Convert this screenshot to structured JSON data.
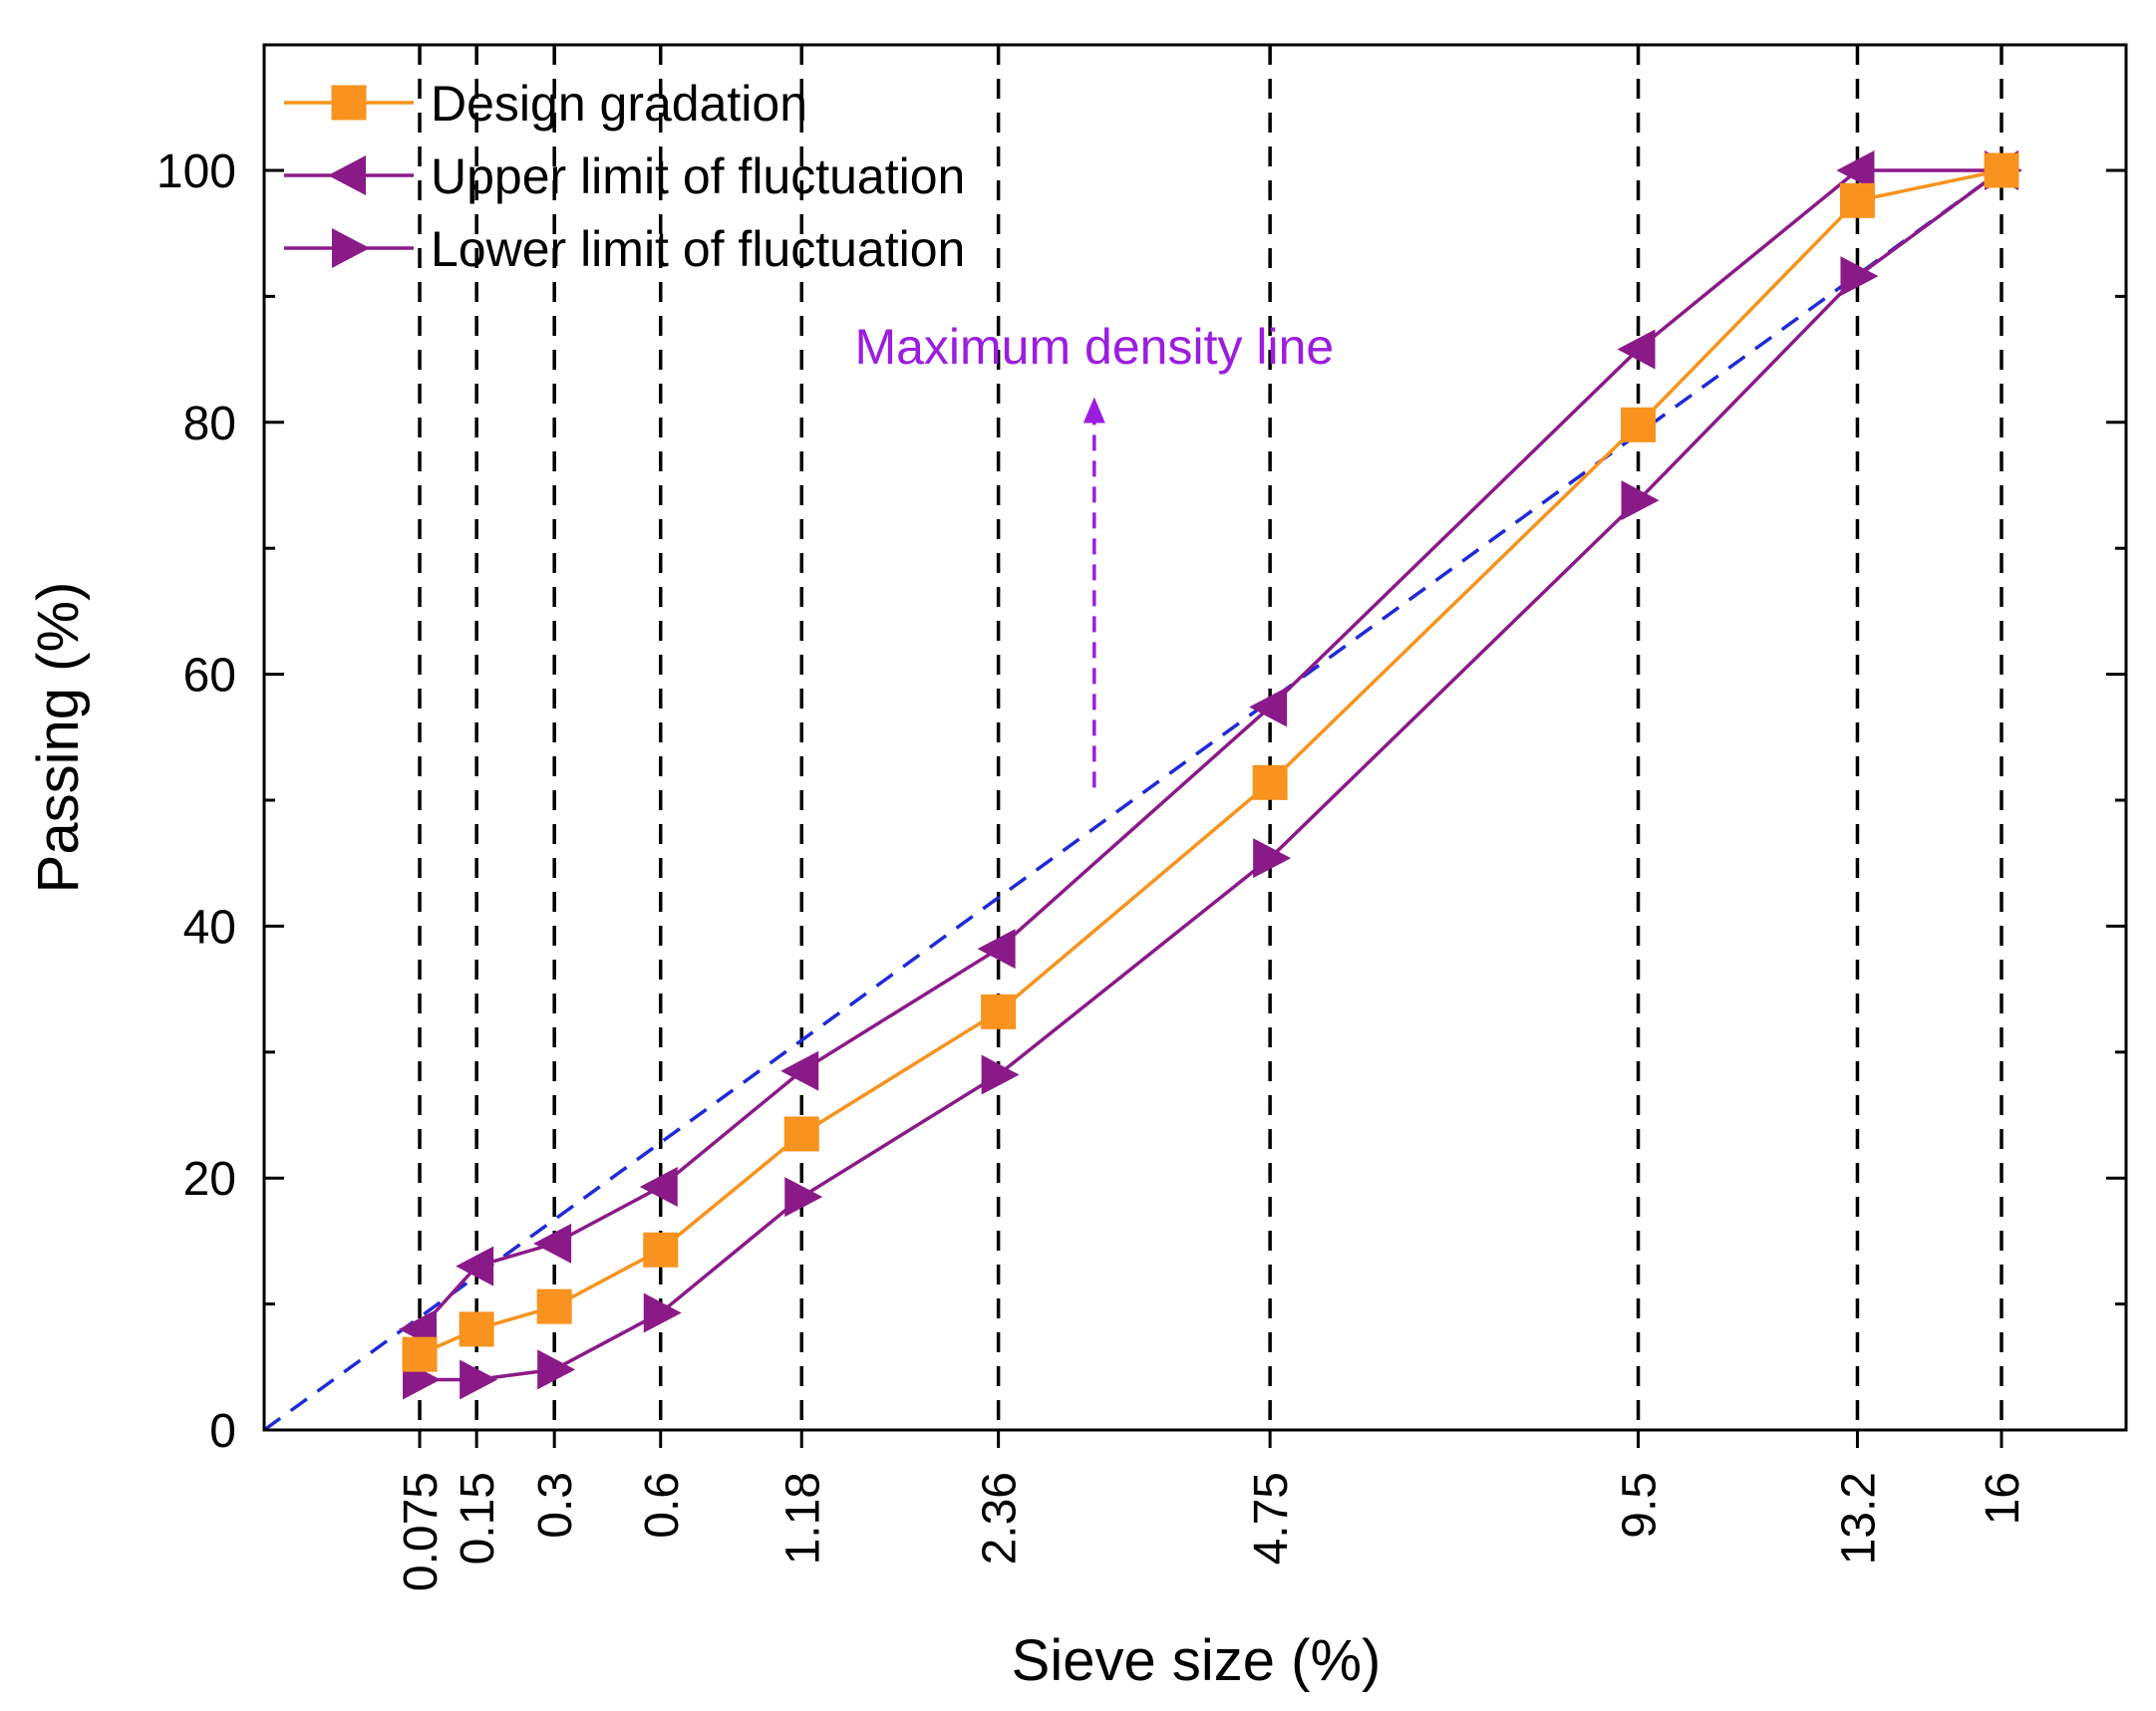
{
  "chart_data": {
    "type": "line",
    "xlabel": "Sieve size (%)",
    "ylabel": "Passing (%)",
    "ylim": [
      0,
      110
    ],
    "y_ticks": [
      "0",
      "20",
      "40",
      "60",
      "80",
      "100"
    ],
    "x_scale": "power-0.45",
    "x_ticks": [
      "0.075",
      "0.15",
      "0.3",
      "0.6",
      "1.18",
      "2.36",
      "4.75",
      "9.5",
      "13.2",
      "16"
    ],
    "x_tick_values": [
      0.075,
      0.15,
      0.3,
      0.6,
      1.18,
      2.36,
      4.75,
      9.5,
      13.2,
      16
    ],
    "grid": "vertical dashed lines at each sieve size",
    "legend_position": "top-left",
    "series": [
      {
        "name": "Design gradation",
        "color": "#f7931e",
        "marker": "square",
        "x": [
          0.075,
          0.15,
          0.3,
          0.6,
          1.18,
          2.36,
          4.75,
          9.5,
          13.2,
          16
        ],
        "values": [
          6,
          8,
          9.8,
          14.3,
          23.5,
          33.2,
          51.4,
          79.8,
          97.6,
          100
        ]
      },
      {
        "name": "Upper limit of fluctuation",
        "color": "#8b1a89",
        "marker": "triangle-left",
        "x": [
          0.075,
          0.15,
          0.3,
          0.6,
          1.18,
          2.36,
          4.75,
          9.5,
          13.2,
          16
        ],
        "values": [
          8,
          13,
          14.8,
          19.3,
          28.5,
          38.2,
          57.4,
          85.8,
          100,
          100
        ]
      },
      {
        "name": "Lower limit of fluctuation",
        "color": "#8b1a89",
        "marker": "triangle-right",
        "x": [
          0.075,
          0.15,
          0.3,
          0.6,
          1.18,
          2.36,
          4.75,
          9.5,
          13.2,
          16
        ],
        "values": [
          4,
          4,
          4.8,
          9.3,
          18.5,
          28.2,
          45.4,
          73.8,
          91.6,
          100
        ]
      }
    ],
    "reference_line": {
      "name": "Maximum density line",
      "color": "#1f2bd6",
      "x": [
        0,
        16
      ],
      "values": [
        0,
        100
      ]
    },
    "annotations": [
      {
        "text": "Maximum density line",
        "color": "#9b1de0",
        "arrow_from_value": 51,
        "arrow_to_value": 82,
        "arrow_at_x": 3.1
      }
    ]
  }
}
